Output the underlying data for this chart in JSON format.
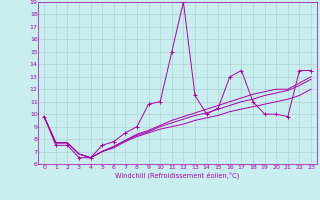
{
  "xlabel": "Windchill (Refroidissement éolien,°C)",
  "bg_color": "#c8eef0",
  "line_color": "#aa00aa",
  "grid_color": "#aacccc",
  "xlim": [
    -0.5,
    23.5
  ],
  "ylim": [
    6,
    19
  ],
  "yticks": [
    6,
    7,
    8,
    9,
    10,
    11,
    12,
    13,
    14,
    15,
    16,
    17,
    18,
    19
  ],
  "xticks": [
    0,
    1,
    2,
    3,
    4,
    5,
    6,
    7,
    8,
    9,
    10,
    11,
    12,
    13,
    14,
    15,
    16,
    17,
    18,
    19,
    20,
    21,
    22,
    23
  ],
  "series1_x": [
    0,
    1,
    2,
    3,
    4,
    5,
    6,
    7,
    8,
    9,
    10,
    11,
    12,
    13,
    14,
    15,
    16,
    17,
    18,
    19,
    20,
    21,
    22,
    23
  ],
  "series1_y": [
    9.8,
    7.5,
    7.5,
    6.5,
    6.5,
    7.5,
    7.8,
    8.5,
    9.0,
    10.8,
    11.0,
    15.0,
    19.0,
    11.5,
    10.0,
    10.5,
    13.0,
    13.5,
    11.0,
    10.0,
    10.0,
    9.8,
    13.5,
    13.5
  ],
  "series2_x": [
    0,
    1,
    2,
    3,
    4,
    5,
    6,
    7,
    8,
    9,
    10,
    11,
    12,
    13,
    14,
    15,
    16,
    17,
    18,
    19,
    20,
    21,
    22,
    23
  ],
  "series2_y": [
    9.8,
    7.7,
    7.7,
    6.8,
    6.5,
    7.0,
    7.3,
    7.8,
    8.2,
    8.5,
    8.8,
    9.0,
    9.2,
    9.5,
    9.7,
    9.9,
    10.2,
    10.4,
    10.6,
    10.8,
    11.0,
    11.2,
    11.5,
    12.0
  ],
  "series3_x": [
    0,
    1,
    2,
    3,
    4,
    5,
    6,
    7,
    8,
    9,
    10,
    11,
    12,
    13,
    14,
    15,
    16,
    17,
    18,
    19,
    20,
    21,
    22,
    23
  ],
  "series3_y": [
    9.8,
    7.7,
    7.7,
    6.8,
    6.5,
    7.0,
    7.4,
    7.9,
    8.3,
    8.6,
    9.0,
    9.3,
    9.6,
    9.9,
    10.1,
    10.4,
    10.7,
    11.0,
    11.2,
    11.5,
    11.7,
    11.9,
    12.3,
    12.8
  ],
  "series4_x": [
    0,
    1,
    2,
    3,
    4,
    5,
    6,
    7,
    8,
    9,
    10,
    11,
    12,
    13,
    14,
    15,
    16,
    17,
    18,
    19,
    20,
    21,
    22,
    23
  ],
  "series4_y": [
    9.8,
    7.7,
    7.7,
    6.8,
    6.5,
    7.0,
    7.4,
    7.9,
    8.4,
    8.7,
    9.1,
    9.5,
    9.8,
    10.1,
    10.4,
    10.7,
    11.0,
    11.3,
    11.6,
    11.8,
    12.0,
    12.0,
    12.5,
    13.0
  ]
}
